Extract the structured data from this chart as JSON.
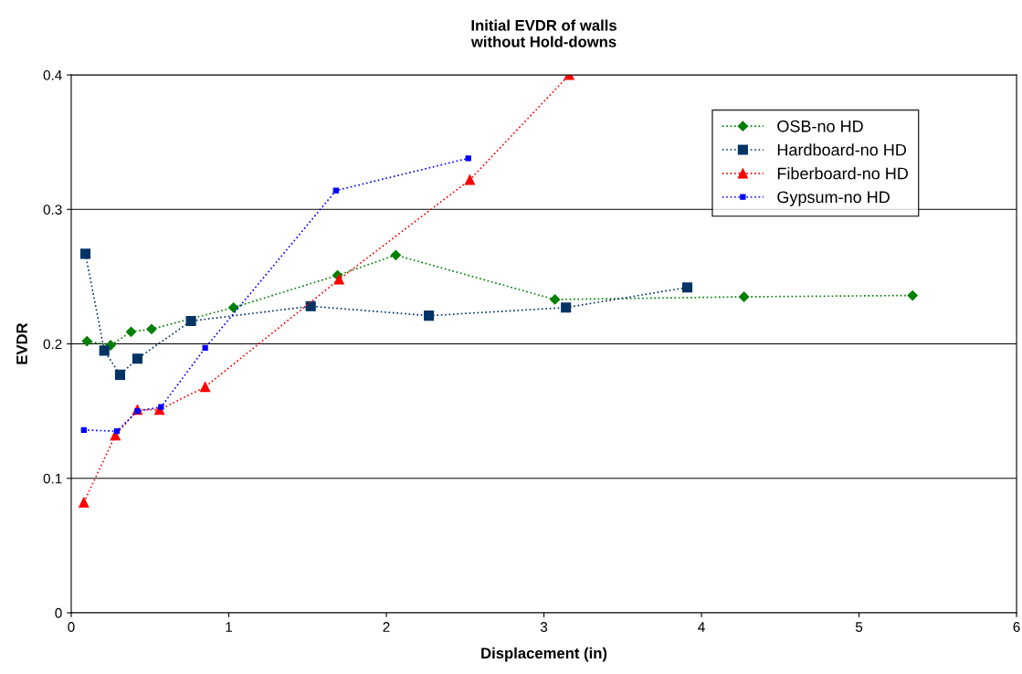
{
  "chart_data": {
    "type": "line",
    "title": "Initial EVDR of walls\nwithout Hold-downs",
    "xlabel": "Displacement (in)",
    "ylabel": "EVDR",
    "xlim": [
      0,
      6
    ],
    "xticks": [
      0,
      1,
      2,
      3,
      4,
      5,
      6
    ],
    "ylim": [
      0,
      0.4
    ],
    "yticks": [
      0,
      0.1,
      0.2,
      0.3,
      0.4
    ],
    "grid": "y",
    "legend": "top right",
    "line_style": "dotted",
    "series": [
      {
        "name": "OSB-no HD",
        "color": "#008000",
        "marker": "diamond",
        "x": [
          0.1,
          0.25,
          0.38,
          0.51,
          1.03,
          1.69,
          2.06,
          3.07,
          4.27,
          5.34
        ],
        "values": [
          0.202,
          0.199,
          0.209,
          0.211,
          0.227,
          0.251,
          0.266,
          0.233,
          0.235,
          0.236
        ]
      },
      {
        "name": "Hardboard-no HD",
        "color": "#003366",
        "marker": "square",
        "x": [
          0.09,
          0.21,
          0.31,
          0.42,
          0.76,
          1.52,
          2.27,
          3.14,
          3.91
        ],
        "values": [
          0.267,
          0.195,
          0.177,
          0.189,
          0.217,
          0.228,
          0.221,
          0.227,
          0.242
        ]
      },
      {
        "name": "Fiberboard-no HD",
        "color": "#ff0000",
        "marker": "triangle",
        "x": [
          0.08,
          0.28,
          0.42,
          0.56,
          0.85,
          1.7,
          2.53,
          3.16
        ],
        "values": [
          0.082,
          0.132,
          0.151,
          0.151,
          0.168,
          0.248,
          0.322,
          0.4
        ]
      },
      {
        "name": "Gypsum-no HD",
        "color": "#0000ff",
        "marker": "square",
        "x": [
          0.08,
          0.29,
          0.42,
          0.57,
          0.85,
          1.68,
          2.52
        ],
        "values": [
          0.136,
          0.135,
          0.15,
          0.153,
          0.197,
          0.314,
          0.338
        ]
      }
    ]
  }
}
